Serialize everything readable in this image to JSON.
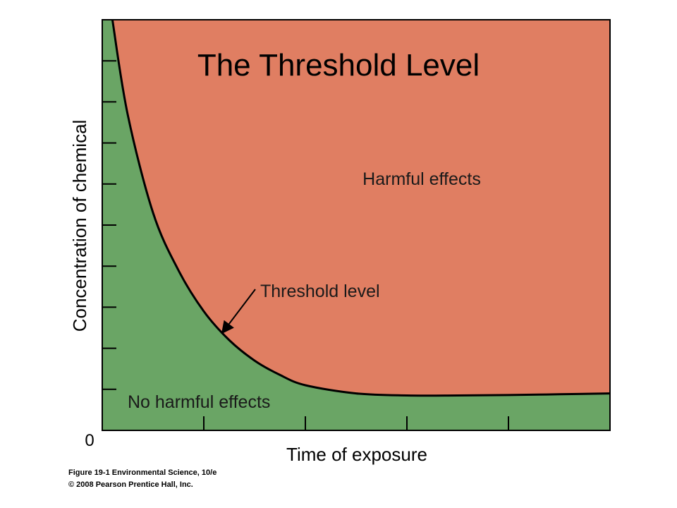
{
  "chart_data": {
    "type": "area",
    "title": "The Threshold Level",
    "xlabel": "Time of exposure",
    "ylabel": "Concentration of chemical",
    "origin_label": "0",
    "x_tick_count": 5,
    "y_tick_count": 10,
    "xlim": [
      0,
      10
    ],
    "ylim": [
      0,
      10
    ],
    "grid": false,
    "legend": "none",
    "regions": {
      "above": {
        "label": "Harmful effects",
        "color": "#e07e62"
      },
      "below": {
        "label": "No harmful effects",
        "color": "#6aa565"
      }
    },
    "series": [
      {
        "x": [
          0.2,
          0.5,
          1.0,
          1.5,
          2.0,
          2.5,
          3.0,
          3.5,
          4.0,
          5.0,
          6.0,
          7.0,
          8.0,
          9.0,
          10.0
        ],
        "values": [
          10.0,
          7.7,
          5.3,
          3.9,
          2.9,
          2.2,
          1.7,
          1.35,
          1.1,
          0.9,
          0.85,
          0.85,
          0.86,
          0.88,
          0.9
        ]
      }
    ],
    "annotations": [
      {
        "text": "Threshold level",
        "points_to": {
          "x": 2.2,
          "y": 2.4
        }
      }
    ]
  },
  "credit": {
    "line1": "Figure 19-1  Environmental Science, 10/e",
    "line2": "© 2008 Pearson Prentice Hall, Inc."
  }
}
